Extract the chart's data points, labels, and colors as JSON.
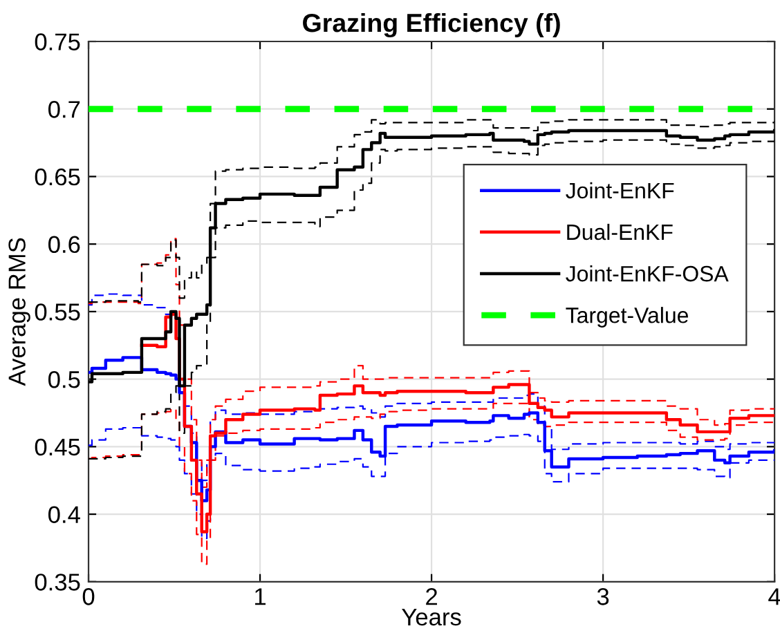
{
  "chart_data": {
    "type": "step",
    "title": "Grazing Efficiency (f)",
    "xlabel": "Years",
    "ylabel": "Average RMS",
    "xlim": [
      0,
      4
    ],
    "xticks": [
      0,
      1,
      2,
      3,
      4
    ],
    "ylim": [
      0.35,
      0.75
    ],
    "yticks": [
      0.35,
      0.4,
      0.45,
      0.5,
      0.55,
      0.6,
      0.65,
      0.7,
      0.75
    ],
    "grid": true,
    "legend": "right",
    "line_style": "solid",
    "ref_lines": [
      {
        "axis": "y",
        "value": 0.7,
        "label": "Target-Value",
        "color": "#00ff00",
        "line_style": "dashed"
      }
    ],
    "series": [
      {
        "name": "Joint-EnKF",
        "color": "#0000ff",
        "x": [
          0,
          0.02,
          0.1,
          0.2,
          0.29,
          0.31,
          0.4,
          0.45,
          0.48,
          0.51,
          0.53,
          0.56,
          0.6,
          0.63,
          0.66,
          0.69,
          0.71,
          0.74,
          0.8,
          0.9,
          1.0,
          1.2,
          1.32,
          1.35,
          1.45,
          1.55,
          1.6,
          1.65,
          1.7,
          1.73,
          1.8,
          2.0,
          2.2,
          2.34,
          2.36,
          2.45,
          2.54,
          2.57,
          2.62,
          2.66,
          2.7,
          2.8,
          3.0,
          3.2,
          3.34,
          3.37,
          3.45,
          3.55,
          3.65,
          3.71,
          3.74,
          3.85,
          4.0
        ],
        "values": [
          0.505,
          0.508,
          0.514,
          0.516,
          0.516,
          0.507,
          0.505,
          0.504,
          0.503,
          0.5,
          0.49,
          0.465,
          0.453,
          0.425,
          0.41,
          0.418,
          0.45,
          0.461,
          0.453,
          0.455,
          0.452,
          0.456,
          0.456,
          0.455,
          0.456,
          0.462,
          0.455,
          0.446,
          0.443,
          0.465,
          0.466,
          0.469,
          0.468,
          0.469,
          0.473,
          0.471,
          0.474,
          0.475,
          0.468,
          0.447,
          0.435,
          0.441,
          0.442,
          0.443,
          0.443,
          0.444,
          0.445,
          0.447,
          0.44,
          0.438,
          0.443,
          0.446,
          0.447
        ]
      },
      {
        "name": "Dual-EnKF",
        "color": "#ff0000",
        "x": [
          0.31,
          0.4,
          0.45,
          0.48,
          0.51,
          0.53,
          0.56,
          0.6,
          0.63,
          0.66,
          0.69,
          0.71,
          0.74,
          0.8,
          0.9,
          1.0,
          1.2,
          1.32,
          1.35,
          1.45,
          1.55,
          1.6,
          1.65,
          1.7,
          1.73,
          1.8,
          2.0,
          2.2,
          2.34,
          2.36,
          2.45,
          2.54,
          2.57,
          2.62,
          2.66,
          2.7,
          2.8,
          3.0,
          3.2,
          3.34,
          3.37,
          3.45,
          3.55,
          3.65,
          3.71,
          3.74,
          3.85,
          4.0
        ],
        "values": [
          0.525,
          0.524,
          0.546,
          0.548,
          0.53,
          0.5,
          0.465,
          0.44,
          0.415,
          0.387,
          0.4,
          0.458,
          0.46,
          0.47,
          0.474,
          0.477,
          0.478,
          0.477,
          0.488,
          0.489,
          0.495,
          0.49,
          0.49,
          0.488,
          0.49,
          0.491,
          0.491,
          0.49,
          0.49,
          0.494,
          0.496,
          0.496,
          0.482,
          0.479,
          0.477,
          0.472,
          0.475,
          0.475,
          0.475,
          0.475,
          0.47,
          0.466,
          0.461,
          0.461,
          0.461,
          0.471,
          0.473,
          0.473
        ]
      },
      {
        "name": "Joint-EnKF-OSA",
        "color": "#000000",
        "x": [
          0,
          0.02,
          0.1,
          0.2,
          0.29,
          0.31,
          0.4,
          0.45,
          0.48,
          0.51,
          0.53,
          0.56,
          0.6,
          0.63,
          0.66,
          0.69,
          0.71,
          0.74,
          0.8,
          0.9,
          1.0,
          1.2,
          1.32,
          1.35,
          1.45,
          1.55,
          1.6,
          1.65,
          1.7,
          1.73,
          1.8,
          2.0,
          2.2,
          2.34,
          2.36,
          2.45,
          2.54,
          2.57,
          2.62,
          2.66,
          2.7,
          2.8,
          3.0,
          3.2,
          3.34,
          3.37,
          3.45,
          3.55,
          3.65,
          3.71,
          3.74,
          3.85,
          4.0
        ],
        "values": [
          0.498,
          0.504,
          0.504,
          0.505,
          0.505,
          0.53,
          0.53,
          0.535,
          0.55,
          0.545,
          0.495,
          0.54,
          0.545,
          0.548,
          0.548,
          0.555,
          0.612,
          0.63,
          0.633,
          0.634,
          0.637,
          0.636,
          0.636,
          0.642,
          0.655,
          0.657,
          0.67,
          0.675,
          0.682,
          0.679,
          0.679,
          0.68,
          0.681,
          0.682,
          0.677,
          0.677,
          0.676,
          0.674,
          0.681,
          0.682,
          0.683,
          0.684,
          0.684,
          0.684,
          0.684,
          0.68,
          0.679,
          0.677,
          0.678,
          0.68,
          0.681,
          0.683,
          0.684
        ]
      },
      {
        "color": "#0000ff",
        "line_style": "dashed",
        "x": [
          0,
          0.02,
          0.1,
          0.2,
          0.29,
          0.31,
          0.4,
          0.45,
          0.48,
          0.51,
          0.53,
          0.56,
          0.6,
          0.63,
          0.66,
          0.69,
          0.71,
          0.74,
          0.8,
          0.9,
          1.0,
          1.2,
          1.32,
          1.35,
          1.45,
          1.55,
          1.6,
          1.65,
          1.7,
          1.73,
          1.8,
          2.0,
          2.2,
          2.34,
          2.36,
          2.45,
          2.54,
          2.57,
          2.62,
          2.66,
          2.7,
          2.8,
          3.0,
          3.2,
          3.34,
          3.37,
          3.45,
          3.55,
          3.65,
          3.71,
          3.74,
          3.85,
          4.0
        ],
        "values": [
          0.555,
          0.562,
          0.563,
          0.562,
          0.562,
          0.555,
          0.553,
          0.548,
          0.545,
          0.53,
          0.505,
          0.48,
          0.46,
          0.44,
          0.425,
          0.44,
          0.47,
          0.477,
          0.474,
          0.475,
          0.474,
          0.476,
          0.477,
          0.478,
          0.479,
          0.48,
          0.478,
          0.475,
          0.472,
          0.48,
          0.482,
          0.483,
          0.483,
          0.483,
          0.486,
          0.486,
          0.488,
          0.489,
          0.48,
          0.465,
          0.448,
          0.452,
          0.453,
          0.453,
          0.453,
          0.453,
          0.452,
          0.454,
          0.45,
          0.448,
          0.452,
          0.453,
          0.453
        ]
      },
      {
        "color": "#0000ff",
        "line_style": "dashed",
        "x": [
          0,
          0.02,
          0.1,
          0.2,
          0.29,
          0.31,
          0.4,
          0.45,
          0.48,
          0.51,
          0.53,
          0.56,
          0.6,
          0.63,
          0.66,
          0.69,
          0.71,
          0.74,
          0.8,
          0.9,
          1.0,
          1.2,
          1.32,
          1.35,
          1.45,
          1.55,
          1.6,
          1.65,
          1.7,
          1.73,
          1.8,
          2.0,
          2.2,
          2.34,
          2.36,
          2.45,
          2.54,
          2.57,
          2.62,
          2.66,
          2.7,
          2.8,
          3.0,
          3.2,
          3.34,
          3.37,
          3.45,
          3.55,
          3.65,
          3.71,
          3.74,
          3.85,
          4.0
        ],
        "values": [
          0.451,
          0.455,
          0.463,
          0.464,
          0.464,
          0.458,
          0.457,
          0.456,
          0.455,
          0.45,
          0.44,
          0.43,
          0.415,
          0.4,
          0.382,
          0.395,
          0.44,
          0.445,
          0.436,
          0.433,
          0.432,
          0.434,
          0.435,
          0.437,
          0.439,
          0.441,
          0.435,
          0.428,
          0.428,
          0.445,
          0.45,
          0.453,
          0.454,
          0.455,
          0.457,
          0.458,
          0.459,
          0.458,
          0.454,
          0.43,
          0.424,
          0.43,
          0.434,
          0.434,
          0.434,
          0.434,
          0.434,
          0.433,
          0.428,
          0.427,
          0.438,
          0.44,
          0.44
        ]
      },
      {
        "color": "#ff0000",
        "line_style": "dashed",
        "x": [
          0,
          0.02,
          0.1,
          0.2,
          0.29,
          0.31,
          0.4,
          0.45,
          0.48,
          0.51,
          0.53,
          0.56,
          0.6,
          0.63,
          0.66,
          0.69,
          0.71,
          0.74,
          0.8,
          0.9,
          1.0,
          1.2,
          1.32,
          1.35,
          1.45,
          1.55,
          1.6,
          1.65,
          1.7,
          1.73,
          1.8,
          2.0,
          2.2,
          2.34,
          2.36,
          2.45,
          2.54,
          2.57,
          2.62,
          2.66,
          2.7,
          2.8,
          3.0,
          3.2,
          3.34,
          3.37,
          3.45,
          3.55,
          3.65,
          3.71,
          3.74,
          3.85,
          4.0
        ],
        "values": [
          0.556,
          0.557,
          0.557,
          0.557,
          0.556,
          0.585,
          0.586,
          0.592,
          0.604,
          0.57,
          0.54,
          0.5,
          0.47,
          0.44,
          0.42,
          0.44,
          0.47,
          0.48,
          0.485,
          0.491,
          0.494,
          0.494,
          0.495,
          0.498,
          0.5,
          0.51,
          0.5,
          0.5,
          0.5,
          0.501,
          0.501,
          0.501,
          0.501,
          0.501,
          0.505,
          0.506,
          0.506,
          0.49,
          0.486,
          0.484,
          0.483,
          0.484,
          0.484,
          0.484,
          0.484,
          0.48,
          0.478,
          0.47,
          0.466,
          0.467,
          0.477,
          0.478,
          0.478
        ]
      },
      {
        "color": "#ff0000",
        "line_style": "dashed",
        "x": [
          0,
          0.02,
          0.1,
          0.2,
          0.29,
          0.31,
          0.4,
          0.45,
          0.48,
          0.51,
          0.53,
          0.56,
          0.6,
          0.63,
          0.66,
          0.69,
          0.71,
          0.74,
          0.8,
          0.9,
          1.0,
          1.2,
          1.32,
          1.35,
          1.45,
          1.55,
          1.6,
          1.65,
          1.7,
          1.73,
          1.8,
          2.0,
          2.2,
          2.34,
          2.36,
          2.45,
          2.54,
          2.57,
          2.62,
          2.66,
          2.7,
          2.8,
          3.0,
          3.2,
          3.34,
          3.37,
          3.45,
          3.55,
          3.65,
          3.71,
          3.74,
          3.85,
          4.0
        ],
        "values": [
          0.441,
          0.442,
          0.443,
          0.444,
          0.444,
          0.474,
          0.475,
          0.476,
          0.478,
          0.47,
          0.45,
          0.43,
          0.41,
          0.385,
          0.363,
          0.38,
          0.44,
          0.458,
          0.46,
          0.462,
          0.463,
          0.463,
          0.464,
          0.468,
          0.47,
          0.472,
          0.472,
          0.471,
          0.474,
          0.476,
          0.477,
          0.478,
          0.478,
          0.478,
          0.482,
          0.482,
          0.482,
          0.47,
          0.466,
          0.465,
          0.466,
          0.468,
          0.468,
          0.468,
          0.468,
          0.462,
          0.457,
          0.455,
          0.455,
          0.456,
          0.466,
          0.468,
          0.468
        ]
      },
      {
        "color": "#000000",
        "line_style": "dashed",
        "x": [
          0,
          0.02,
          0.1,
          0.2,
          0.29,
          0.31,
          0.4,
          0.45,
          0.48,
          0.51,
          0.53,
          0.56,
          0.6,
          0.63,
          0.66,
          0.69,
          0.71,
          0.74,
          0.8,
          0.9,
          1.0,
          1.2,
          1.32,
          1.35,
          1.45,
          1.55,
          1.6,
          1.65,
          1.7,
          1.73,
          1.8,
          2.0,
          2.2,
          2.34,
          2.36,
          2.45,
          2.54,
          2.57,
          2.62,
          2.66,
          2.7,
          2.8,
          3.0,
          3.2,
          3.34,
          3.37,
          3.45,
          3.55,
          3.65,
          3.71,
          3.74,
          3.85,
          4.0
        ],
        "values": [
          0.557,
          0.557,
          0.558,
          0.558,
          0.557,
          0.585,
          0.584,
          0.59,
          0.603,
          0.59,
          0.56,
          0.575,
          0.58,
          0.575,
          0.585,
          0.59,
          0.63,
          0.654,
          0.655,
          0.656,
          0.657,
          0.656,
          0.657,
          0.66,
          0.672,
          0.681,
          0.683,
          0.692,
          0.689,
          0.69,
          0.69,
          0.69,
          0.692,
          0.692,
          0.686,
          0.686,
          0.686,
          0.684,
          0.69,
          0.69,
          0.691,
          0.692,
          0.692,
          0.692,
          0.692,
          0.688,
          0.688,
          0.687,
          0.688,
          0.689,
          0.69,
          0.69,
          0.691
        ]
      },
      {
        "color": "#000000",
        "line_style": "dashed",
        "x": [
          0,
          0.02,
          0.1,
          0.2,
          0.29,
          0.31,
          0.4,
          0.45,
          0.48,
          0.51,
          0.53,
          0.56,
          0.6,
          0.63,
          0.66,
          0.69,
          0.71,
          0.74,
          0.8,
          0.9,
          1.0,
          1.2,
          1.32,
          1.35,
          1.45,
          1.55,
          1.6,
          1.65,
          1.7,
          1.73,
          1.8,
          2.0,
          2.2,
          2.34,
          2.36,
          2.45,
          2.54,
          2.57,
          2.62,
          2.66,
          2.7,
          2.8,
          3.0,
          3.2,
          3.34,
          3.37,
          3.45,
          3.55,
          3.65,
          3.71,
          3.74,
          3.85,
          4.0
        ],
        "values": [
          0.441,
          0.441,
          0.442,
          0.443,
          0.443,
          0.474,
          0.476,
          0.478,
          0.49,
          0.495,
          0.46,
          0.495,
          0.505,
          0.51,
          0.51,
          0.54,
          0.59,
          0.612,
          0.614,
          0.617,
          0.616,
          0.616,
          0.613,
          0.62,
          0.625,
          0.64,
          0.645,
          0.66,
          0.67,
          0.669,
          0.67,
          0.671,
          0.672,
          0.672,
          0.668,
          0.667,
          0.667,
          0.666,
          0.673,
          0.674,
          0.675,
          0.676,
          0.677,
          0.677,
          0.677,
          0.674,
          0.673,
          0.671,
          0.672,
          0.673,
          0.675,
          0.676,
          0.677
        ]
      }
    ]
  }
}
